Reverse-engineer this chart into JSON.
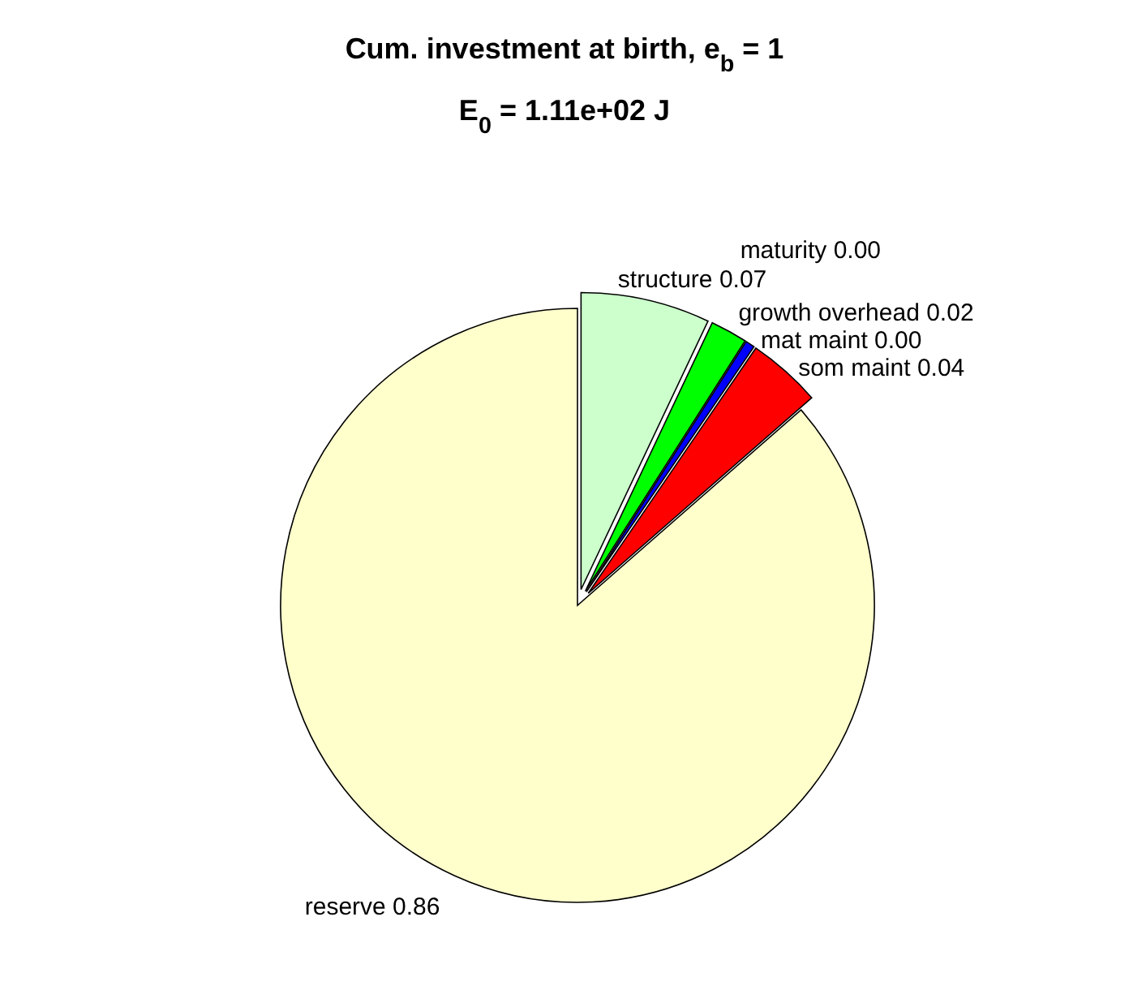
{
  "chart_data": {
    "type": "pie",
    "title": "Cum. investment at birth, e$_{b}$ = 1",
    "subtitle": "E$_{0}$ = 1.11e+02 J",
    "categories": [
      "structure",
      "growth overhead",
      "maturity",
      "mat maint",
      "som maint",
      "reserve"
    ],
    "values": [
      0.07,
      0.02,
      0,
      0.005,
      0.04,
      0.86
    ],
    "value_labels": [
      "0.07",
      "0.02",
      "0.00",
      "0.00",
      "0.04",
      "0.86"
    ],
    "colors": [
      "#ccffcc",
      "#00ff00",
      "#ffff00",
      "#0000ff",
      "#ff0000",
      "#ffffcc"
    ],
    "legend": false
  }
}
